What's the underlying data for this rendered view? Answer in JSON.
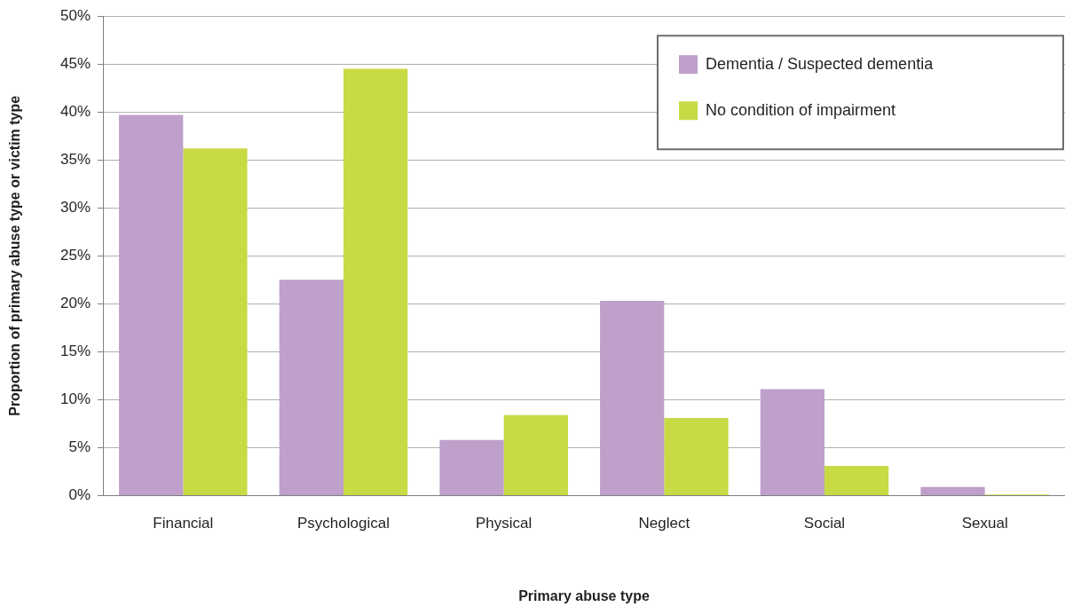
{
  "chart_data": {
    "type": "bar",
    "xlabel": "Primary abuse type",
    "ylabel": "Proportion of primary abuse type or victim type",
    "categories": [
      "Financial",
      "Psychological",
      "Physical",
      "Neglect",
      "Social",
      "Sexual"
    ],
    "series": [
      {
        "name": "Dementia / Suspected dementia",
        "color": "#bea0cb",
        "values": [
          39.7,
          22.5,
          5.8,
          20.3,
          11.1,
          0.9
        ]
      },
      {
        "name": "No condition of impairment",
        "color": "#c8da44",
        "values": [
          36.2,
          44.5,
          8.4,
          8.1,
          3.1,
          0.1
        ]
      }
    ],
    "ylim": [
      0,
      50
    ],
    "yticks": [
      {
        "value": 0,
        "label": "0%"
      },
      {
        "value": 5,
        "label": "5%"
      },
      {
        "value": 10,
        "label": "10%"
      },
      {
        "value": 15,
        "label": "15%"
      },
      {
        "value": 20,
        "label": "20%"
      },
      {
        "value": 25,
        "label": "25%"
      },
      {
        "value": 30,
        "label": "30%"
      },
      {
        "value": 35,
        "label": "35%"
      },
      {
        "value": 40,
        "label": "40%"
      },
      {
        "value": 45,
        "label": "45%"
      },
      {
        "value": 50,
        "label": "50%"
      }
    ],
    "grid": "y",
    "legend": "top right"
  }
}
